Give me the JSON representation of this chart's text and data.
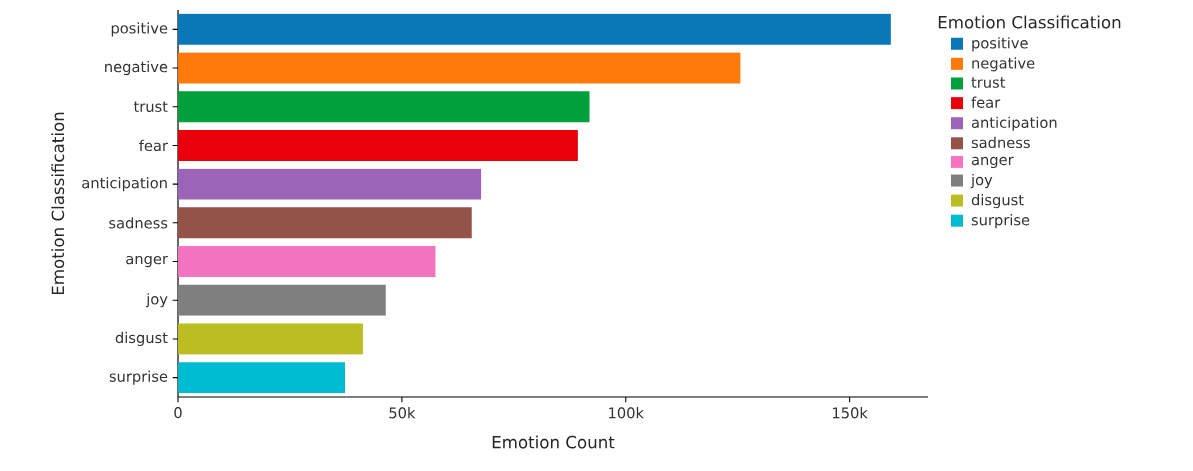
{
  "chart_data": {
    "type": "bar",
    "orientation": "horizontal",
    "categories": [
      "positive",
      "negative",
      "trust",
      "fear",
      "anticipation",
      "sadness",
      "anger",
      "joy",
      "disgust",
      "surprise"
    ],
    "series": [
      {
        "name": "positive",
        "color": "#0a77b7",
        "values": [
          159200,
          null,
          null,
          null,
          null,
          null,
          null,
          null,
          null,
          null
        ]
      },
      {
        "name": "negative",
        "color": "#ff7a0a",
        "values": [
          null,
          125600,
          null,
          null,
          null,
          null,
          null,
          null,
          null,
          null
        ]
      },
      {
        "name": "trust",
        "color": "#00a03a",
        "values": [
          null,
          null,
          91900,
          null,
          null,
          null,
          null,
          null,
          null,
          null
        ]
      },
      {
        "name": "fear",
        "color": "#e8000b",
        "values": [
          null,
          null,
          null,
          89300,
          null,
          null,
          null,
          null,
          null,
          null
        ]
      },
      {
        "name": "anticipation",
        "color": "#9b64b8",
        "values": [
          null,
          null,
          null,
          null,
          67700,
          null,
          null,
          null,
          null,
          null
        ]
      },
      {
        "name": "sadness",
        "color": "#935348",
        "values": [
          null,
          null,
          null,
          null,
          null,
          65600,
          null,
          null,
          null,
          null
        ]
      },
      {
        "name": "anger",
        "color": "#f474c1",
        "values": [
          null,
          null,
          null,
          null,
          null,
          null,
          57500,
          null,
          null,
          null
        ]
      },
      {
        "name": "joy",
        "color": "#7f7f7f",
        "values": [
          null,
          null,
          null,
          null,
          null,
          null,
          null,
          46400,
          null,
          null
        ]
      },
      {
        "name": "disgust",
        "color": "#bcbd22",
        "values": [
          null,
          null,
          null,
          null,
          null,
          null,
          null,
          null,
          41300,
          null
        ]
      },
      {
        "name": "surprise",
        "color": "#00bcd0",
        "values": [
          null,
          null,
          null,
          null,
          null,
          null,
          null,
          null,
          null,
          37300
        ]
      }
    ],
    "xlabel": "Emotion Count",
    "ylabel": "Emotion Classification",
    "legend_title": "Emotion Classification",
    "xlim": [
      0,
      167500
    ],
    "xticks": [
      0,
      {
        "value": 50000,
        "label": "50k"
      },
      {
        "value": 100000,
        "label": "100k"
      },
      {
        "value": 150000,
        "label": "150k"
      }
    ],
    "legend": "right"
  }
}
